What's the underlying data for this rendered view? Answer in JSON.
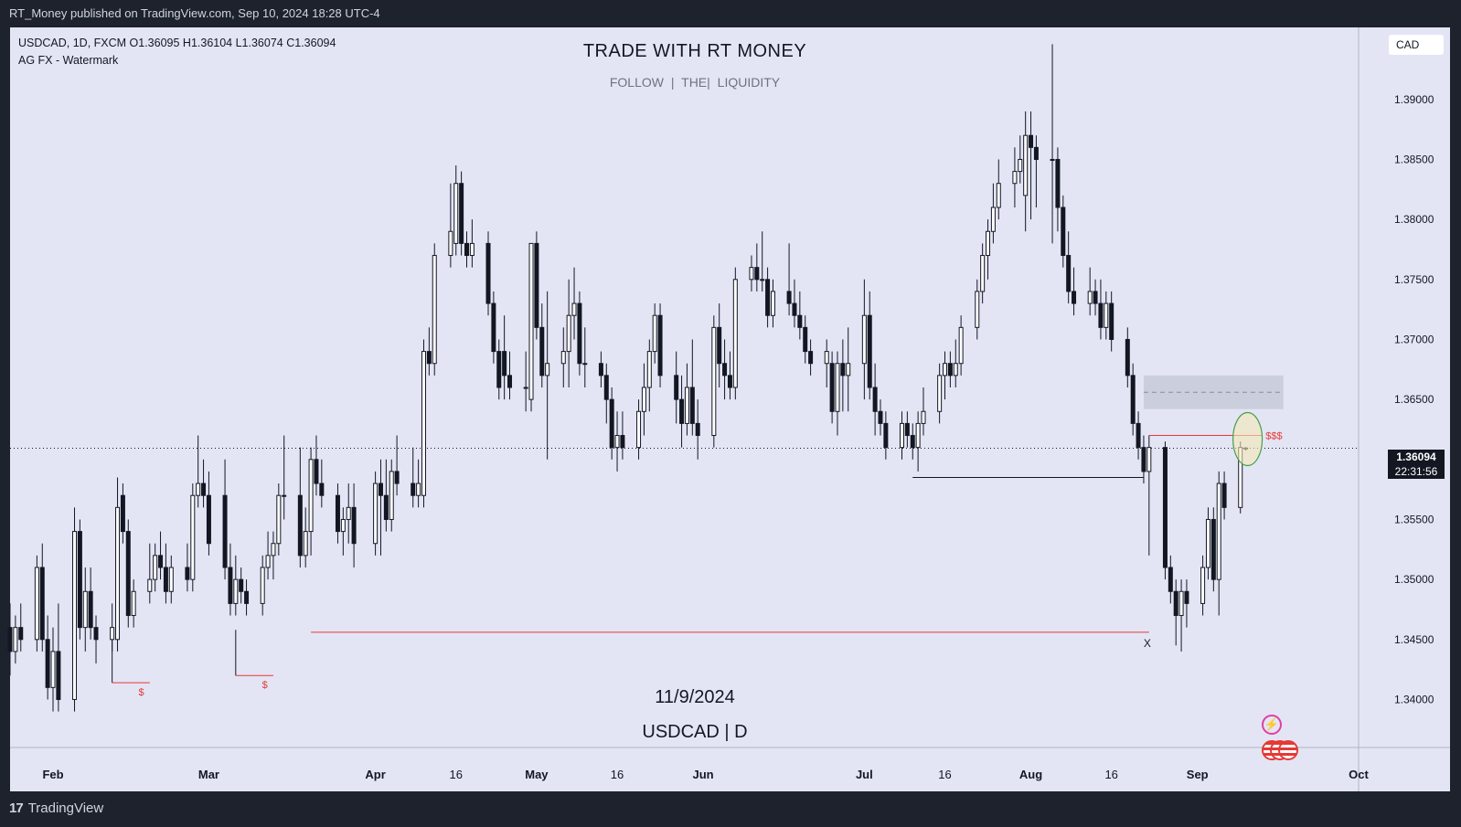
{
  "header": {
    "publish_text": "RT_Money published on TradingView.com, Sep 10, 2024 18:28 UTC-4"
  },
  "footer": {
    "brand": "TradingView",
    "logo_glyph": "17"
  },
  "legend": {
    "line1": "USDCAD, 1D, FXCM  O1.36095  H1.36104  L1.36074  C1.36094",
    "line2": "AG FX - Watermark"
  },
  "watermark": {
    "title": "TRADE WITH RT MONEY",
    "subtitle": "FOLLOW  |  THE|  LIQUIDITY",
    "date": "11/9/2024",
    "symbol": "USDCAD | D"
  },
  "price_axis": {
    "currency": "CAD",
    "last_price": "1.36094",
    "timer": "22:31:56"
  },
  "colors": {
    "background": "#e3e5f5",
    "candle": "#131722",
    "annotation_red": "#e53935",
    "ellipse_fill": "#f5e8b8",
    "ellipse_stroke": "#43a047",
    "zone": "#c3c6d4"
  },
  "icons": [
    "lightning-icon",
    "us-flag-icon"
  ],
  "chart_data": {
    "type": "candlestick",
    "symbol": "USDCAD",
    "timeframe": "1D",
    "ylim": [
      1.336,
      1.396
    ],
    "y_ticks": [
      "1.39000",
      "1.38500",
      "1.38000",
      "1.37500",
      "1.37000",
      "1.36500",
      "1.36000",
      "1.35500",
      "1.35000",
      "1.34500",
      "1.34000"
    ],
    "x_ticks": [
      {
        "label": "Feb",
        "date": "2024-02-01"
      },
      {
        "label": "Mar",
        "date": "2024-03-01"
      },
      {
        "label": "Apr",
        "date": "2024-04-01"
      },
      {
        "label": "16",
        "date": "2024-04-16"
      },
      {
        "label": "May",
        "date": "2024-05-01"
      },
      {
        "label": "16",
        "date": "2024-05-16"
      },
      {
        "label": "Jun",
        "date": "2024-06-01"
      },
      {
        "label": "Jul",
        "date": "2024-07-01"
      },
      {
        "label": "16",
        "date": "2024-07-16"
      },
      {
        "label": "Aug",
        "date": "2024-08-01"
      },
      {
        "label": "16",
        "date": "2024-08-16"
      },
      {
        "label": "Sep",
        "date": "2024-09-01"
      },
      {
        "label": "Oct",
        "date": "2024-10-01"
      }
    ],
    "x_range": [
      "2024-01-24",
      "2024-10-01"
    ],
    "last_price": 1.36094,
    "candles": [
      [
        "2024-01-24",
        1.346,
        1.348,
        1.342,
        1.344
      ],
      [
        "2024-01-25",
        1.344,
        1.347,
        1.343,
        1.346
      ],
      [
        "2024-01-26",
        1.346,
        1.348,
        1.344,
        1.345
      ],
      [
        "2024-01-29",
        1.345,
        1.352,
        1.344,
        1.351
      ],
      [
        "2024-01-30",
        1.351,
        1.353,
        1.344,
        1.345
      ],
      [
        "2024-01-31",
        1.345,
        1.347,
        1.34,
        1.341
      ],
      [
        "2024-02-01",
        1.341,
        1.346,
        1.339,
        1.344
      ],
      [
        "2024-02-02",
        1.344,
        1.348,
        1.339,
        1.34
      ],
      [
        "2024-02-05",
        1.34,
        1.356,
        1.339,
        1.354
      ],
      [
        "2024-02-06",
        1.354,
        1.355,
        1.345,
        1.346
      ],
      [
        "2024-02-07",
        1.346,
        1.351,
        1.344,
        1.349
      ],
      [
        "2024-02-08",
        1.349,
        1.351,
        1.345,
        1.346
      ],
      [
        "2024-02-09",
        1.346,
        1.347,
        1.343,
        1.345
      ],
      [
        "2024-02-12",
        1.345,
        1.348,
        1.344,
        1.346
      ],
      [
        "2024-02-13",
        1.345,
        1.3585,
        1.344,
        1.356
      ],
      [
        "2024-02-14",
        1.357,
        1.358,
        1.353,
        1.354
      ],
      [
        "2024-02-15",
        1.354,
        1.355,
        1.346,
        1.347
      ],
      [
        "2024-02-16",
        1.347,
        1.35,
        1.346,
        1.349
      ],
      [
        "2024-02-19",
        1.349,
        1.353,
        1.348,
        1.35
      ],
      [
        "2024-02-20",
        1.35,
        1.353,
        1.349,
        1.352
      ],
      [
        "2024-02-21",
        1.352,
        1.354,
        1.35,
        1.351
      ],
      [
        "2024-02-22",
        1.351,
        1.353,
        1.348,
        1.349
      ],
      [
        "2024-02-23",
        1.349,
        1.352,
        1.348,
        1.351
      ],
      [
        "2024-02-26",
        1.351,
        1.353,
        1.349,
        1.35
      ],
      [
        "2024-02-27",
        1.35,
        1.358,
        1.349,
        1.357
      ],
      [
        "2024-02-28",
        1.357,
        1.362,
        1.356,
        1.358
      ],
      [
        "2024-02-29",
        1.358,
        1.36,
        1.356,
        1.357
      ],
      [
        "2024-03-01",
        1.357,
        1.359,
        1.352,
        1.353
      ],
      [
        "2024-03-04",
        1.357,
        1.36,
        1.35,
        1.351
      ],
      [
        "2024-03-05",
        1.351,
        1.353,
        1.347,
        1.348
      ],
      [
        "2024-03-06",
        1.348,
        1.352,
        1.347,
        1.35
      ],
      [
        "2024-03-07",
        1.35,
        1.351,
        1.348,
        1.349
      ],
      [
        "2024-03-08",
        1.349,
        1.35,
        1.347,
        1.348
      ],
      [
        "2024-03-11",
        1.348,
        1.352,
        1.347,
        1.351
      ],
      [
        "2024-03-12",
        1.351,
        1.354,
        1.35,
        1.352
      ],
      [
        "2024-03-13",
        1.352,
        1.354,
        1.35,
        1.353
      ],
      [
        "2024-03-14",
        1.353,
        1.358,
        1.352,
        1.357
      ],
      [
        "2024-03-15",
        1.357,
        1.362,
        1.355,
        1.357
      ],
      [
        "2024-03-18",
        1.357,
        1.361,
        1.351,
        1.352
      ],
      [
        "2024-03-19",
        1.352,
        1.356,
        1.351,
        1.354
      ],
      [
        "2024-03-20",
        1.354,
        1.361,
        1.352,
        1.36
      ],
      [
        "2024-03-21",
        1.36,
        1.362,
        1.357,
        1.358
      ],
      [
        "2024-03-22",
        1.358,
        1.36,
        1.356,
        1.357
      ],
      [
        "2024-03-25",
        1.357,
        1.358,
        1.353,
        1.354
      ],
      [
        "2024-03-26",
        1.354,
        1.356,
        1.352,
        1.355
      ],
      [
        "2024-03-27",
        1.355,
        1.358,
        1.353,
        1.356
      ],
      [
        "2024-03-28",
        1.356,
        1.358,
        1.351,
        1.353
      ],
      [
        "2024-04-01",
        1.353,
        1.359,
        1.352,
        1.358
      ],
      [
        "2024-04-02",
        1.358,
        1.36,
        1.352,
        1.357
      ],
      [
        "2024-04-03",
        1.357,
        1.36,
        1.354,
        1.355
      ],
      [
        "2024-04-04",
        1.355,
        1.36,
        1.354,
        1.359
      ],
      [
        "2024-04-05",
        1.359,
        1.362,
        1.357,
        1.358
      ],
      [
        "2024-04-08",
        1.358,
        1.361,
        1.356,
        1.357
      ],
      [
        "2024-04-09",
        1.357,
        1.36,
        1.356,
        1.358
      ],
      [
        "2024-04-10",
        1.357,
        1.37,
        1.356,
        1.369
      ],
      [
        "2024-04-11",
        1.369,
        1.371,
        1.367,
        1.368
      ],
      [
        "2024-04-12",
        1.368,
        1.378,
        1.367,
        1.377
      ],
      [
        "2024-04-15",
        1.377,
        1.383,
        1.376,
        1.379
      ],
      [
        "2024-04-16",
        1.378,
        1.3845,
        1.377,
        1.383
      ],
      [
        "2024-04-17",
        1.383,
        1.384,
        1.377,
        1.378
      ],
      [
        "2024-04-18",
        1.378,
        1.379,
        1.376,
        1.377
      ],
      [
        "2024-04-19",
        1.377,
        1.38,
        1.376,
        1.378
      ],
      [
        "2024-04-22",
        1.378,
        1.379,
        1.372,
        1.373
      ],
      [
        "2024-04-23",
        1.373,
        1.374,
        1.368,
        1.369
      ],
      [
        "2024-04-24",
        1.369,
        1.37,
        1.365,
        1.366
      ],
      [
        "2024-04-25",
        1.369,
        1.372,
        1.365,
        1.367
      ],
      [
        "2024-04-26",
        1.367,
        1.369,
        1.365,
        1.366
      ],
      [
        "2024-04-29",
        1.366,
        1.369,
        1.364,
        1.366
      ],
      [
        "2024-04-30",
        1.365,
        1.378,
        1.364,
        1.378
      ],
      [
        "2024-05-01",
        1.378,
        1.379,
        1.37,
        1.371
      ],
      [
        "2024-05-02",
        1.371,
        1.373,
        1.366,
        1.367
      ],
      [
        "2024-05-03",
        1.367,
        1.374,
        1.36,
        1.368
      ],
      [
        "2024-05-06",
        1.368,
        1.371,
        1.366,
        1.369
      ],
      [
        "2024-05-07",
        1.369,
        1.375,
        1.366,
        1.372
      ],
      [
        "2024-05-08",
        1.372,
        1.376,
        1.37,
        1.373
      ],
      [
        "2024-05-09",
        1.373,
        1.374,
        1.367,
        1.368
      ],
      [
        "2024-05-10",
        1.368,
        1.371,
        1.366,
        1.368
      ],
      [
        "2024-05-13",
        1.368,
        1.369,
        1.366,
        1.367
      ],
      [
        "2024-05-14",
        1.367,
        1.368,
        1.363,
        1.365
      ],
      [
        "2024-05-15",
        1.365,
        1.366,
        1.36,
        1.361
      ],
      [
        "2024-05-16",
        1.361,
        1.364,
        1.359,
        1.362
      ],
      [
        "2024-05-17",
        1.362,
        1.364,
        1.36,
        1.361
      ],
      [
        "2024-05-20",
        1.361,
        1.365,
        1.36,
        1.364
      ],
      [
        "2024-05-21",
        1.364,
        1.368,
        1.362,
        1.366
      ],
      [
        "2024-05-22",
        1.366,
        1.37,
        1.364,
        1.369
      ],
      [
        "2024-05-23",
        1.369,
        1.373,
        1.368,
        1.372
      ],
      [
        "2024-05-24",
        1.372,
        1.373,
        1.366,
        1.367
      ],
      [
        "2024-05-27",
        1.367,
        1.369,
        1.363,
        1.365
      ],
      [
        "2024-05-28",
        1.365,
        1.367,
        1.361,
        1.363
      ],
      [
        "2024-05-29",
        1.363,
        1.368,
        1.362,
        1.366
      ],
      [
        "2024-05-30",
        1.366,
        1.37,
        1.362,
        1.363
      ],
      [
        "2024-05-31",
        1.363,
        1.365,
        1.36,
        1.362
      ],
      [
        "2024-06-03",
        1.362,
        1.372,
        1.361,
        1.371
      ],
      [
        "2024-06-04",
        1.371,
        1.373,
        1.366,
        1.368
      ],
      [
        "2024-06-05",
        1.368,
        1.37,
        1.365,
        1.367
      ],
      [
        "2024-06-06",
        1.367,
        1.369,
        1.365,
        1.366
      ],
      [
        "2024-06-07",
        1.366,
        1.376,
        1.365,
        1.375
      ],
      [
        "2024-06-10",
        1.375,
        1.377,
        1.374,
        1.376
      ],
      [
        "2024-06-11",
        1.376,
        1.378,
        1.374,
        1.375
      ],
      [
        "2024-06-12",
        1.375,
        1.379,
        1.374,
        1.375
      ],
      [
        "2024-06-13",
        1.375,
        1.376,
        1.371,
        1.372
      ],
      [
        "2024-06-14",
        1.372,
        1.375,
        1.371,
        1.374
      ],
      [
        "2024-06-17",
        1.374,
        1.378,
        1.372,
        1.373
      ],
      [
        "2024-06-18",
        1.373,
        1.375,
        1.371,
        1.372
      ],
      [
        "2024-06-19",
        1.372,
        1.374,
        1.37,
        1.371
      ],
      [
        "2024-06-20",
        1.371,
        1.372,
        1.368,
        1.369
      ],
      [
        "2024-06-21",
        1.369,
        1.37,
        1.367,
        1.368
      ],
      [
        "2024-06-24",
        1.368,
        1.37,
        1.366,
        1.369
      ],
      [
        "2024-06-25",
        1.368,
        1.369,
        1.363,
        1.364
      ],
      [
        "2024-06-26",
        1.364,
        1.369,
        1.362,
        1.368
      ],
      [
        "2024-06-27",
        1.368,
        1.37,
        1.364,
        1.367
      ],
      [
        "2024-06-28",
        1.367,
        1.371,
        1.364,
        1.368
      ],
      [
        "2024-07-01",
        1.368,
        1.375,
        1.365,
        1.372
      ],
      [
        "2024-07-02",
        1.372,
        1.374,
        1.365,
        1.366
      ],
      [
        "2024-07-03",
        1.366,
        1.368,
        1.362,
        1.364
      ],
      [
        "2024-07-04",
        1.364,
        1.365,
        1.362,
        1.363
      ],
      [
        "2024-07-05",
        1.363,
        1.364,
        1.36,
        1.361
      ],
      [
        "2024-07-08",
        1.361,
        1.364,
        1.36,
        1.363
      ],
      [
        "2024-07-09",
        1.363,
        1.364,
        1.361,
        1.362
      ],
      [
        "2024-07-10",
        1.362,
        1.363,
        1.36,
        1.361
      ],
      [
        "2024-07-11",
        1.361,
        1.364,
        1.359,
        1.363
      ],
      [
        "2024-07-12",
        1.363,
        1.366,
        1.362,
        1.364
      ],
      [
        "2024-07-15",
        1.364,
        1.368,
        1.363,
        1.367
      ],
      [
        "2024-07-16",
        1.367,
        1.369,
        1.365,
        1.368
      ],
      [
        "2024-07-17",
        1.368,
        1.369,
        1.366,
        1.367
      ],
      [
        "2024-07-18",
        1.367,
        1.37,
        1.366,
        1.368
      ],
      [
        "2024-07-19",
        1.368,
        1.372,
        1.367,
        1.371
      ],
      [
        "2024-07-22",
        1.371,
        1.375,
        1.37,
        1.374
      ],
      [
        "2024-07-23",
        1.374,
        1.378,
        1.373,
        1.377
      ],
      [
        "2024-07-24",
        1.377,
        1.38,
        1.375,
        1.379
      ],
      [
        "2024-07-25",
        1.379,
        1.383,
        1.378,
        1.381
      ],
      [
        "2024-07-26",
        1.381,
        1.385,
        1.38,
        1.383
      ],
      [
        "2024-07-29",
        1.383,
        1.386,
        1.381,
        1.384
      ],
      [
        "2024-07-30",
        1.384,
        1.387,
        1.383,
        1.385
      ],
      [
        "2024-07-31",
        1.382,
        1.389,
        1.379,
        1.387
      ],
      [
        "2024-08-01",
        1.387,
        1.389,
        1.38,
        1.386
      ],
      [
        "2024-08-02",
        1.386,
        1.387,
        1.381,
        1.385
      ],
      [
        "2024-08-05",
        1.385,
        1.3946,
        1.378,
        1.385
      ],
      [
        "2024-08-06",
        1.385,
        1.386,
        1.379,
        1.381
      ],
      [
        "2024-08-07",
        1.381,
        1.382,
        1.376,
        1.377
      ],
      [
        "2024-08-08",
        1.377,
        1.379,
        1.373,
        1.374
      ],
      [
        "2024-08-09",
        1.374,
        1.376,
        1.372,
        1.373
      ],
      [
        "2024-08-12",
        1.373,
        1.376,
        1.372,
        1.374
      ],
      [
        "2024-08-13",
        1.374,
        1.375,
        1.372,
        1.373
      ],
      [
        "2024-08-14",
        1.373,
        1.375,
        1.37,
        1.371
      ],
      [
        "2024-08-15",
        1.371,
        1.374,
        1.37,
        1.373
      ],
      [
        "2024-08-16",
        1.373,
        1.374,
        1.369,
        1.37
      ],
      [
        "2024-08-19",
        1.37,
        1.371,
        1.366,
        1.367
      ],
      [
        "2024-08-20",
        1.367,
        1.368,
        1.362,
        1.363
      ],
      [
        "2024-08-21",
        1.363,
        1.364,
        1.36,
        1.361
      ],
      [
        "2024-08-22",
        1.361,
        1.362,
        1.358,
        1.359
      ],
      [
        "2024-08-23",
        1.359,
        1.362,
        1.352,
        1.361
      ],
      [
        "2024-08-26",
        1.361,
        1.3615,
        1.35,
        1.351
      ],
      [
        "2024-08-27",
        1.351,
        1.352,
        1.348,
        1.349
      ],
      [
        "2024-08-28",
        1.349,
        1.35,
        1.3445,
        1.347
      ],
      [
        "2024-08-29",
        1.347,
        1.35,
        1.344,
        1.349
      ],
      [
        "2024-08-30",
        1.349,
        1.35,
        1.346,
        1.348
      ],
      [
        "2024-09-02",
        1.348,
        1.352,
        1.347,
        1.351
      ],
      [
        "2024-09-03",
        1.351,
        1.356,
        1.35,
        1.355
      ],
      [
        "2024-09-04",
        1.355,
        1.356,
        1.349,
        1.35
      ],
      [
        "2024-09-05",
        1.35,
        1.359,
        1.347,
        1.358
      ],
      [
        "2024-09-06",
        1.358,
        1.359,
        1.355,
        1.356
      ],
      [
        "2024-09-09",
        1.356,
        1.3615,
        1.3555,
        1.361
      ],
      [
        "2024-09-10",
        1.36095,
        1.36104,
        1.36074,
        1.36094
      ]
    ],
    "annotations": {
      "liquidity_lines": [
        {
          "label": "$",
          "price": 1.3414,
          "from": "2024-02-12",
          "to": "2024-02-19"
        },
        {
          "label": "$",
          "price": 1.342,
          "from": "2024-03-06",
          "to": "2024-03-13"
        },
        {
          "label": "$$$",
          "price": 1.362,
          "from": "2024-08-23",
          "to": "2024-09-13"
        }
      ],
      "horizontal_lines": [
        {
          "label": "X",
          "price": 1.3456,
          "from": "2024-03-20",
          "to": "2024-08-23",
          "color": "red"
        },
        {
          "label": "",
          "price": 1.3585,
          "from": "2024-07-10",
          "to": "2024-08-22",
          "color": "black"
        }
      ],
      "zone": {
        "from": "2024-08-22",
        "to": "2024-09-17",
        "top": 1.367,
        "bottom": 1.3642,
        "mid": 1.3656
      },
      "ellipse_center": {
        "date": "2024-09-10",
        "price": 1.3617
      }
    }
  }
}
